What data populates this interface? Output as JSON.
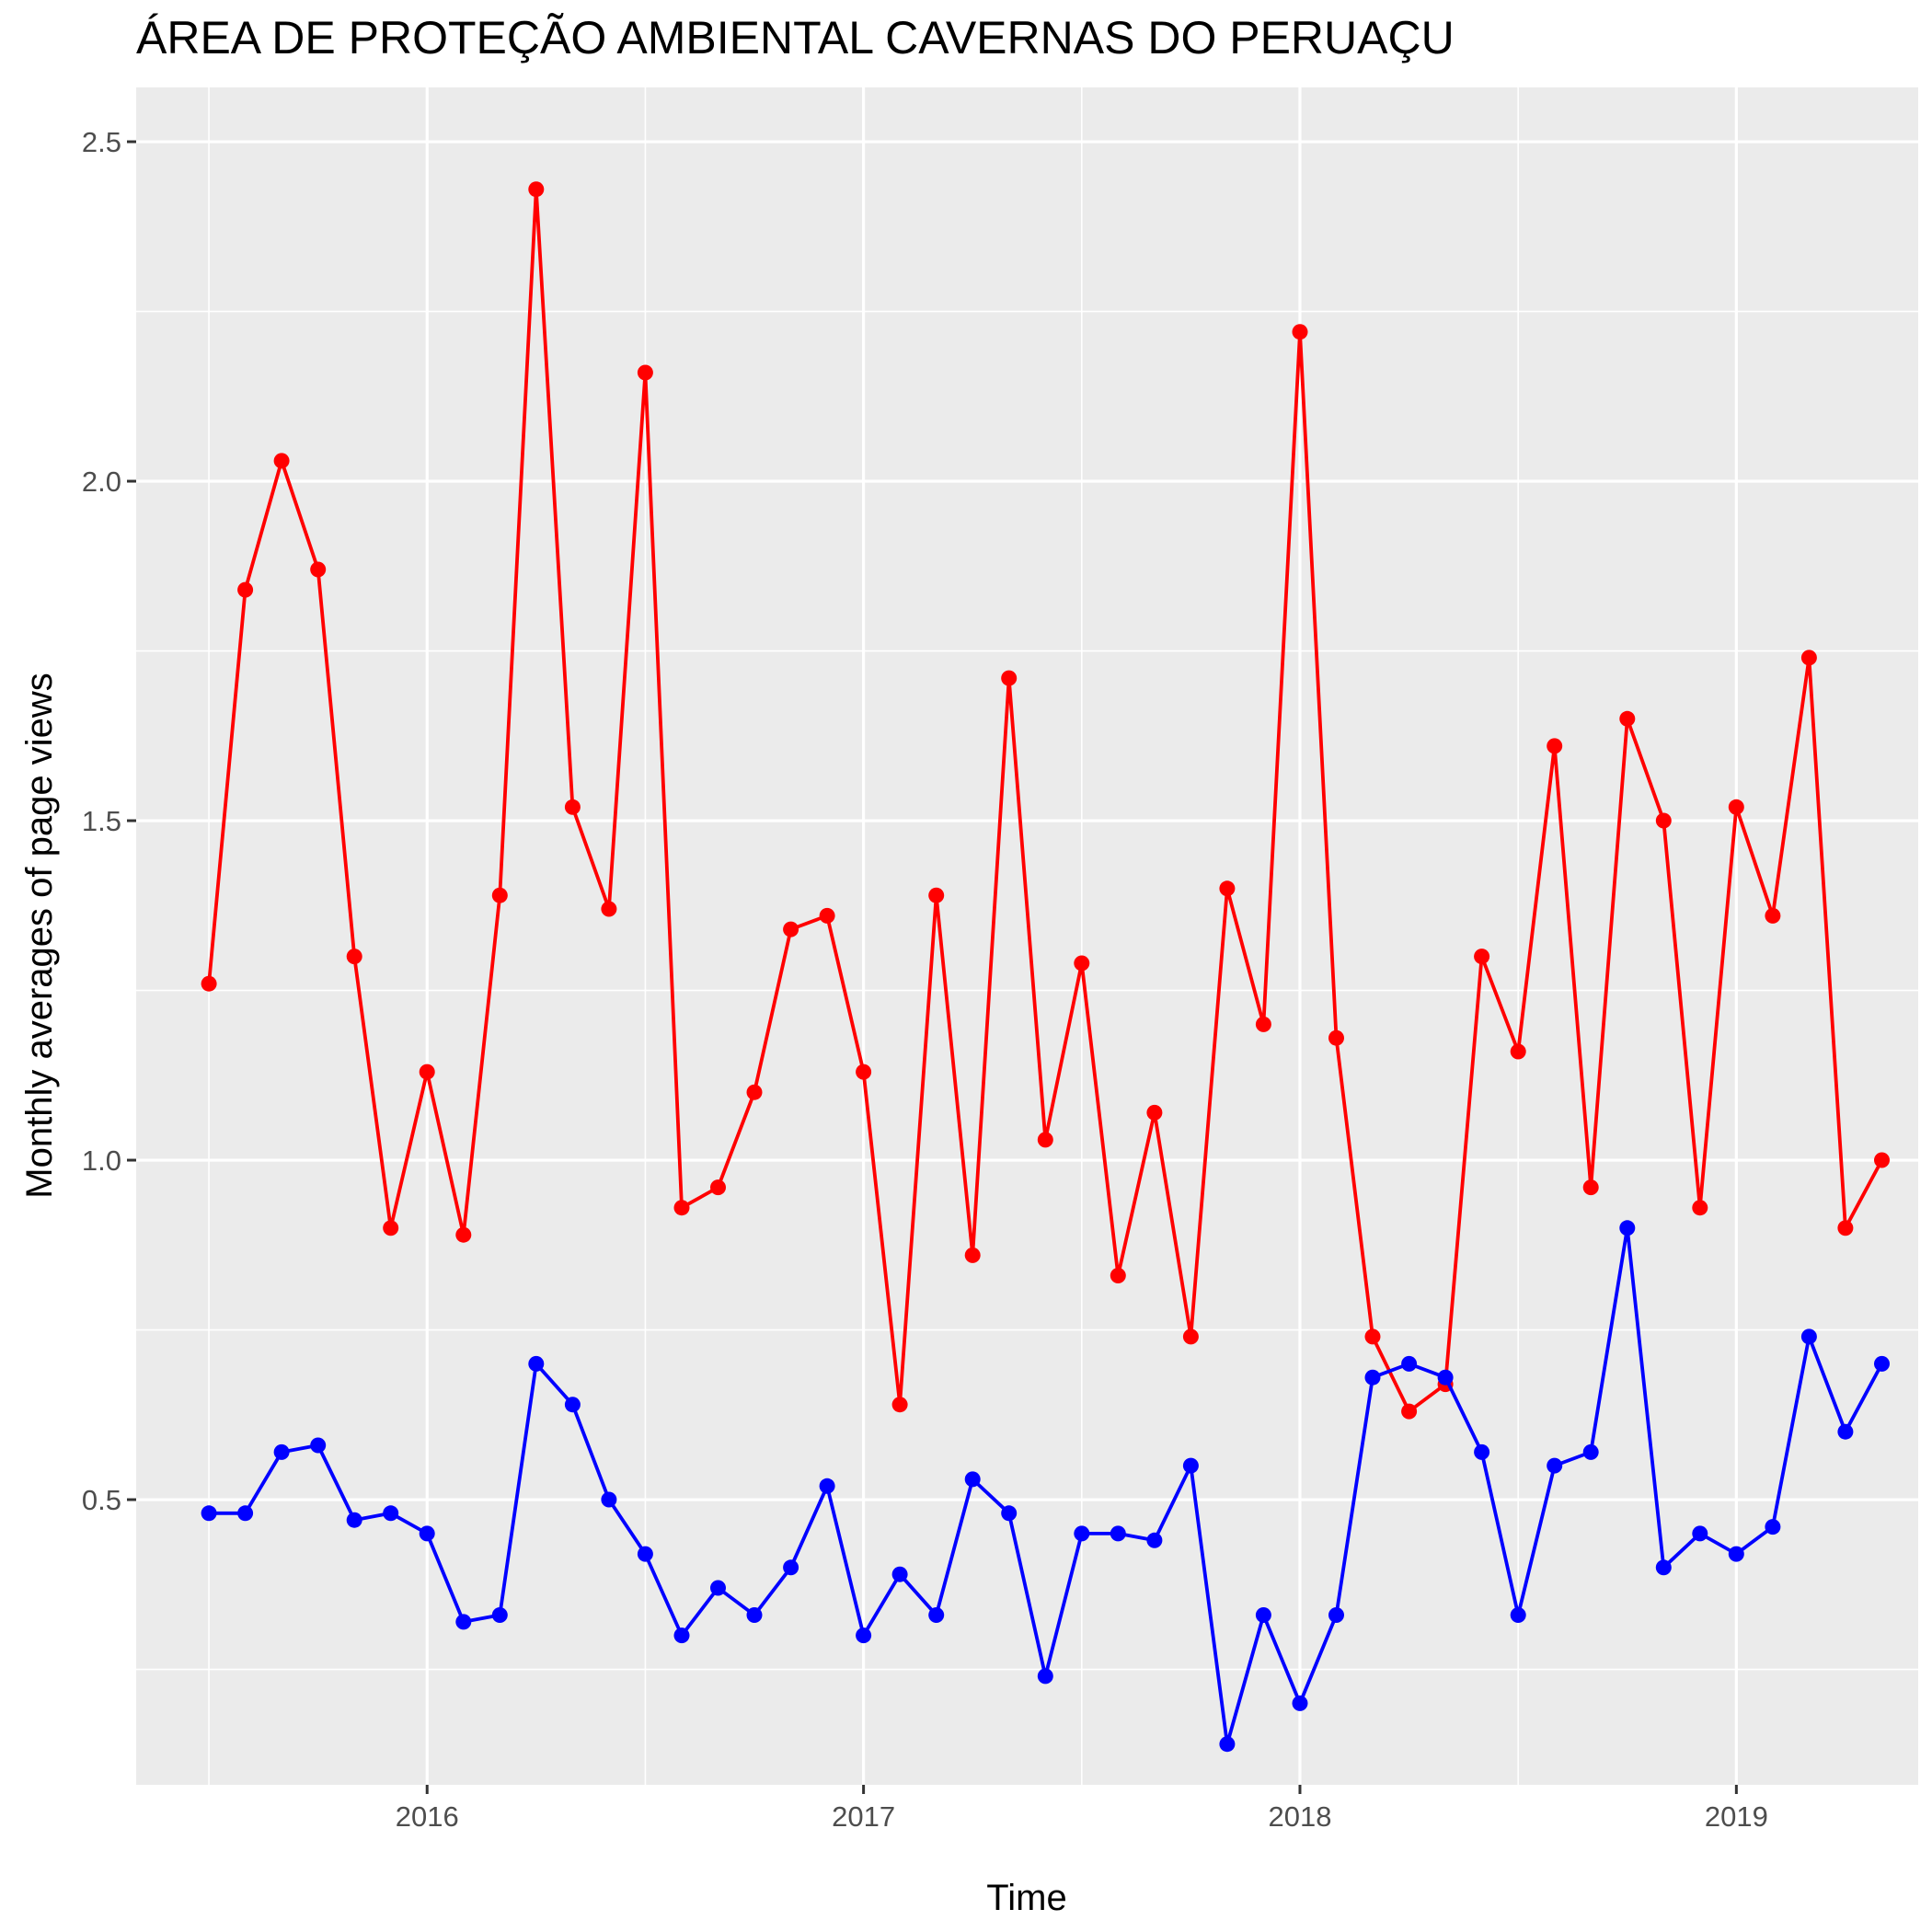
{
  "chart_data": {
    "type": "line",
    "title": "ÁREA DE PROTEÇÃO AMBIENTAL CAVERNAS DO PERUAÇU",
    "xlabel": "Time",
    "ylabel": "Monthly averages of page views",
    "x_tick_labels": [
      "2016",
      "2017",
      "2018",
      "2019"
    ],
    "y_tick_labels": [
      "0.5",
      "1.0",
      "1.5",
      "2.0",
      "2.5"
    ],
    "ylim": [
      0.08,
      2.58
    ],
    "xlim": [
      "2015-05",
      "2019-06"
    ],
    "grid": true,
    "x": [
      "2015-07",
      "2015-08",
      "2015-09",
      "2015-10",
      "2015-11",
      "2015-12",
      "2016-01",
      "2016-02",
      "2016-03",
      "2016-04",
      "2016-05",
      "2016-06",
      "2016-07",
      "2016-08",
      "2016-09",
      "2016-10",
      "2016-11",
      "2016-12",
      "2017-01",
      "2017-02",
      "2017-03",
      "2017-04",
      "2017-05",
      "2017-06",
      "2017-07",
      "2017-08",
      "2017-09",
      "2017-10",
      "2017-11",
      "2017-12",
      "2018-01",
      "2018-02",
      "2018-03",
      "2018-04",
      "2018-05",
      "2018-06",
      "2018-07",
      "2018-08",
      "2018-09",
      "2018-10",
      "2018-11",
      "2018-12",
      "2019-01",
      "2019-02",
      "2019-03",
      "2019-04",
      "2019-05"
    ],
    "series": [
      {
        "color": "#ff0000",
        "values": [
          1.26,
          1.84,
          2.03,
          1.87,
          1.3,
          0.9,
          1.13,
          0.89,
          1.39,
          2.43,
          1.52,
          1.37,
          2.16,
          0.93,
          0.96,
          1.1,
          1.34,
          1.36,
          1.13,
          0.64,
          1.39,
          0.86,
          1.71,
          1.03,
          1.29,
          0.83,
          1.07,
          0.74,
          1.4,
          1.2,
          2.22,
          1.18,
          0.74,
          0.63,
          0.67,
          1.3,
          1.16,
          1.61,
          0.96,
          1.65,
          1.5,
          0.93,
          1.52,
          1.36,
          1.74,
          0.9,
          1.0
        ]
      },
      {
        "color": "#0000ff",
        "values": [
          0.48,
          0.48,
          0.57,
          0.58,
          0.47,
          0.48,
          0.45,
          0.32,
          0.33,
          0.7,
          0.64,
          0.5,
          0.42,
          0.3,
          0.37,
          0.33,
          0.4,
          0.52,
          0.3,
          0.39,
          0.33,
          0.53,
          0.48,
          0.24,
          0.45,
          0.45,
          0.44,
          0.55,
          0.14,
          0.33,
          0.2,
          0.33,
          0.68,
          0.7,
          0.68,
          0.57,
          0.33,
          0.55,
          0.57,
          0.9,
          0.4,
          0.45,
          0.42,
          0.46,
          0.74,
          0.6,
          0.7
        ]
      }
    ]
  }
}
